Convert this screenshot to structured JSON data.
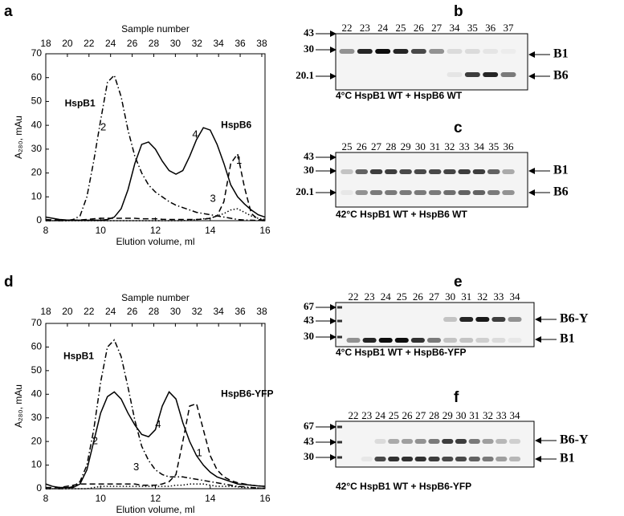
{
  "chart_data": [
    {
      "panel": "a",
      "type": "line",
      "xlabel": "Elution volume, ml",
      "ylabel": "A₂₈₀, mAu",
      "x2label": "Sample number",
      "xlim": [
        8,
        16
      ],
      "xticks": [
        8,
        10,
        12,
        14,
        16
      ],
      "ylim": [
        0,
        70
      ],
      "yticks": [
        0,
        10,
        20,
        30,
        40,
        50,
        60,
        70
      ],
      "x2lim": [
        18,
        38.3
      ],
      "x2ticks": [
        18,
        20,
        22,
        24,
        26,
        28,
        30,
        32,
        34,
        36,
        38
      ],
      "annotations": [
        "HspB1",
        "HspB6"
      ],
      "x": [
        8,
        8.25,
        8.5,
        8.75,
        9,
        9.25,
        9.5,
        9.75,
        10,
        10.25,
        10.5,
        10.75,
        11,
        11.25,
        11.5,
        11.75,
        12,
        12.25,
        12.5,
        12.75,
        13,
        13.25,
        13.5,
        13.75,
        14,
        14.25,
        14.5,
        14.75,
        15,
        15.25,
        15.5,
        15.75,
        16
      ],
      "series": [
        {
          "name": "1",
          "color": "#000",
          "dash": "dash",
          "values": [
            0.5,
            0.3,
            0.2,
            0.2,
            0.2,
            0.3,
            0.5,
            0.8,
            1,
            1,
            1,
            1,
            1,
            1,
            0.8,
            0.8,
            0.8,
            0.6,
            0.5,
            0.5,
            0.5,
            0.5,
            0.5,
            0.6,
            1,
            2,
            8,
            24,
            28,
            14,
            3,
            0.5,
            0.2
          ]
        },
        {
          "name": "2",
          "color": "#000",
          "dash": "dashdot",
          "values": [
            0,
            0,
            0,
            0,
            0.5,
            2,
            10,
            25,
            42,
            58,
            61,
            52,
            38,
            27,
            20,
            15,
            12,
            10,
            8,
            6.5,
            5.5,
            4.5,
            3.5,
            3,
            2.5,
            2,
            1.5,
            1,
            0.5,
            0.3,
            0.2,
            0.1,
            0
          ]
        },
        {
          "name": "3",
          "color": "#000",
          "dash": "dot",
          "values": [
            0,
            0,
            0,
            0,
            0,
            0,
            0,
            0,
            0,
            0,
            0,
            0,
            0,
            0,
            0,
            0,
            0,
            0,
            0,
            0,
            0,
            0.2,
            0.5,
            0.8,
            1,
            2,
            3,
            4.5,
            5,
            3.5,
            2,
            1,
            0.5
          ]
        },
        {
          "name": "4",
          "color": "#000",
          "dash": "solid",
          "values": [
            1.5,
            1,
            0.5,
            0.3,
            0.2,
            0.2,
            0.2,
            0.2,
            0.2,
            0.5,
            1.5,
            5,
            13,
            24,
            32,
            33,
            30,
            25,
            21,
            19.5,
            21,
            27,
            34,
            39,
            38,
            32,
            24,
            15,
            10,
            7,
            4.5,
            2.5,
            1.5
          ]
        }
      ]
    },
    {
      "panel": "d",
      "type": "line",
      "xlabel": "Elution volume, ml",
      "ylabel": "A₂₈₀, mAu",
      "x2label": "Sample number",
      "xlim": [
        8,
        16
      ],
      "xticks": [
        8,
        10,
        12,
        14,
        16
      ],
      "ylim": [
        0,
        70
      ],
      "yticks": [
        0,
        10,
        20,
        30,
        40,
        50,
        60,
        70
      ],
      "x2lim": [
        18,
        38.3
      ],
      "x2ticks": [
        18,
        20,
        22,
        24,
        26,
        28,
        30,
        32,
        34,
        36,
        38
      ],
      "annotations": [
        "HspB1",
        "HspB6-YFP"
      ],
      "x": [
        8,
        8.25,
        8.5,
        8.75,
        9,
        9.25,
        9.5,
        9.75,
        10,
        10.25,
        10.5,
        10.75,
        11,
        11.25,
        11.5,
        11.75,
        12,
        12.25,
        12.5,
        12.75,
        13,
        13.25,
        13.5,
        13.75,
        14,
        14.25,
        14.5,
        14.75,
        15,
        15.25,
        15.5,
        15.75,
        16
      ],
      "series": [
        {
          "name": "1",
          "color": "#000",
          "dash": "dash",
          "values": [
            0.5,
            0.5,
            0.5,
            1,
            1.5,
            2,
            2,
            2,
            2,
            2,
            2,
            2,
            2,
            2,
            1.5,
            1.5,
            1.5,
            2,
            3,
            6,
            20,
            35,
            36,
            25,
            14,
            8,
            5,
            3.5,
            2.5,
            2,
            1.5,
            1.2,
            1
          ]
        },
        {
          "name": "2",
          "color": "#000",
          "dash": "dashdot",
          "values": [
            0,
            0,
            0,
            0,
            1,
            3,
            10,
            25,
            45,
            60,
            63,
            56,
            43,
            29,
            18,
            12,
            8,
            6,
            5,
            5,
            5,
            4.5,
            4,
            3.5,
            3,
            2.5,
            2,
            1.5,
            1,
            0.8,
            0.5,
            0.3,
            0.2
          ]
        },
        {
          "name": "3",
          "color": "#000",
          "dash": "dot",
          "values": [
            0,
            0,
            0,
            0,
            0,
            0,
            0,
            0.5,
            1,
            1,
            1,
            1,
            1,
            1,
            1,
            1,
            1,
            1,
            1,
            1.5,
            1.5,
            2,
            2,
            2,
            1.5,
            1,
            1,
            1,
            0.8,
            0.5,
            0.5,
            0.3,
            0.2
          ]
        },
        {
          "name": "4",
          "color": "#000",
          "dash": "solid",
          "values": [
            2,
            1,
            0.5,
            0.5,
            0.5,
            2,
            8,
            20,
            32,
            39,
            41,
            38,
            32,
            27,
            23,
            22,
            25,
            35,
            41,
            38,
            28,
            20,
            14,
            10,
            7,
            5,
            4,
            3,
            2,
            1.8,
            1.5,
            1.2,
            1
          ]
        }
      ]
    }
  ],
  "gels": [
    {
      "panel": "b",
      "lanes": [
        "22",
        "23",
        "24",
        "25",
        "26",
        "27",
        "34",
        "35",
        "36",
        "37"
      ],
      "markers": [
        "43",
        "30",
        "20.1"
      ],
      "bands": [
        "B1",
        "B6"
      ],
      "caption": "4°C HspB1 WT + HspB6 WT"
    },
    {
      "panel": "c",
      "lanes": [
        "25",
        "26",
        "27",
        "28",
        "29",
        "30",
        "31",
        "32",
        "33",
        "34",
        "35",
        "36"
      ],
      "markers": [
        "43",
        "30",
        "20.1"
      ],
      "bands": [
        "B1",
        "B6"
      ],
      "caption": "42°C HspB1 WT + HspB6 WT"
    },
    {
      "panel": "e",
      "lanes": [
        "22",
        "23",
        "24",
        "25",
        "26",
        "27",
        "30",
        "31",
        "32",
        "33",
        "34"
      ],
      "markers": [
        "67",
        "43",
        "30"
      ],
      "bands": [
        "B6-Y",
        "B1"
      ],
      "caption": "4°C HspB1 WT + HspB6-YFP"
    },
    {
      "panel": "f",
      "lanes": [
        "22",
        "23",
        "24",
        "25",
        "26",
        "27",
        "28",
        "29",
        "30",
        "31",
        "32",
        "33",
        "34"
      ],
      "markers": [
        "67",
        "43",
        "30"
      ],
      "bands": [
        "B6-Y",
        "B1"
      ],
      "caption": "42°C HspB1 WT + HspB6-YFP"
    }
  ]
}
